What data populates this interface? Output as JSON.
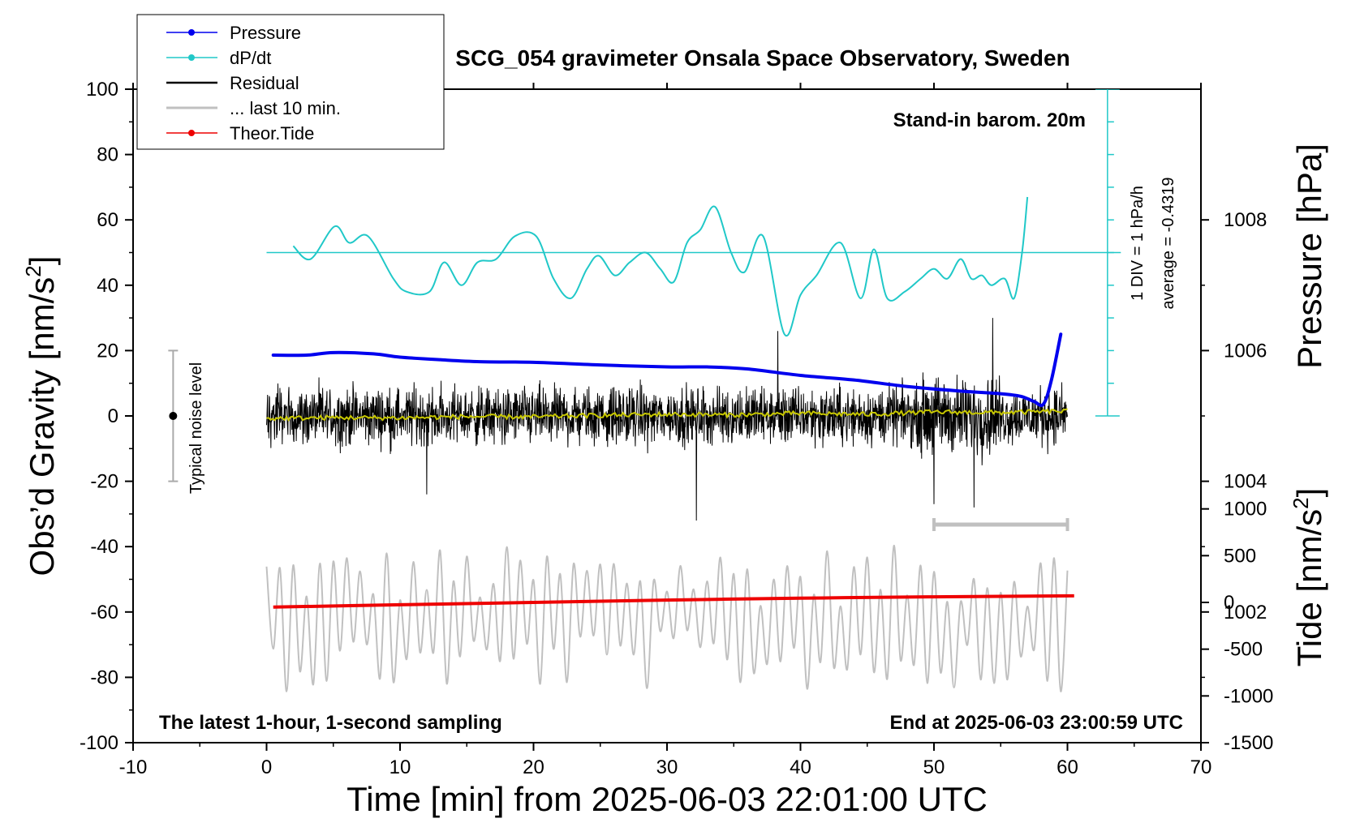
{
  "chart_data": {
    "type": "line",
    "title": "SCG_054 gravimeter Onsala Space Observatory, Sweden",
    "xlabel": "Time [min] from 2025-06-03 22:01:00 UTC",
    "ylabel_left_main": "Obs’d Gravity [nm/s",
    "ylabel_left_sup": "2",
    "ylabel_left_end": "]",
    "ylabel_right_pressure": "Pressure [hPa]",
    "ylabel_right_tide_main": "Tide [nm/s",
    "ylabel_right_tide_sup": "2",
    "ylabel_right_tide_end": "]",
    "xlim": [
      -10,
      70
    ],
    "ylim": [
      -100,
      100
    ],
    "pressure_lim": [
      1000,
      1010
    ],
    "tide_lim": [
      -1500,
      1500
    ],
    "x_ticks": [
      "-10",
      "0",
      "10",
      "20",
      "30",
      "40",
      "50",
      "60",
      "70"
    ],
    "y_ticks": [
      "100",
      "80",
      "60",
      "40",
      "20",
      "0",
      "-20",
      "-40",
      "-60",
      "-80",
      "-100"
    ],
    "pressure_ticks": [
      "1008",
      "1006",
      "1004",
      "1002"
    ],
    "tide_ticks": [
      "1000",
      "500",
      "0",
      "-500",
      "-1000",
      "-1500"
    ],
    "legend_placement": "top-left",
    "legend": {
      "pressure": "Pressure",
      "dpdt": "dP/dt",
      "residual": "Residual",
      "last10": "... last 10 min.",
      "tide": "Theor.Tide"
    },
    "annotations": {
      "barom": "Stand-in barom. 20m",
      "div": "1 DIV = 1 hPa/h",
      "average": "average = -0.4319",
      "noise": "Typical noise level",
      "latest": "The latest 1-hour, 1-second sampling",
      "end": "End at 2025-06-03 23:00:59 UTC"
    },
    "noise_bar": {
      "x": -7,
      "y_center": 0,
      "half_range": 20
    },
    "last10_bar": {
      "x_start": 50,
      "x_end": 60
    },
    "dpdt_scale": {
      "x": 63,
      "zero_y": 50,
      "y_min": 0,
      "y_max": 100,
      "tick_step": 10
    },
    "colors": {
      "pressure": "#0000ee",
      "dpdt": "#20c8c8",
      "residual": "#000000",
      "residual_smooth": "#c8c800",
      "last10": "#c0c0c0",
      "tide": "#ee0000"
    },
    "series": [
      {
        "name": "Pressure",
        "x": [
          0.5,
          3,
          5,
          8,
          10,
          13,
          16,
          20,
          25,
          30,
          33,
          36,
          40,
          44,
          48,
          52,
          55,
          56.5,
          57.5,
          58.2,
          58.8,
          59.5
        ],
        "values": [
          1005.93,
          1005.93,
          1005.97,
          1005.95,
          1005.9,
          1005.86,
          1005.83,
          1005.82,
          1005.78,
          1005.75,
          1005.75,
          1005.72,
          1005.62,
          1005.55,
          1005.45,
          1005.38,
          1005.34,
          1005.3,
          1005.22,
          1005.18,
          1005.55,
          1006.25
        ]
      },
      {
        "name": "dP/dt",
        "x": [
          2,
          3.3,
          5.1,
          6.2,
          7.6,
          9.5,
          10.5,
          12.2,
          13.3,
          14.6,
          15.8,
          17.2,
          18.6,
          20.2,
          21.5,
          22.8,
          24,
          24.9,
          26.1,
          27.2,
          28.4,
          29.5,
          30.5,
          31.5,
          32.5,
          33.6,
          34.8,
          35.8,
          37.2,
          38.8,
          40,
          41.2,
          43,
          44.5,
          45.5,
          46.5,
          47.8,
          49,
          50,
          51,
          52,
          52.8,
          53.6,
          54.3,
          55.3,
          56,
          56.6,
          57
        ],
        "values": [
          52,
          48,
          58,
          53,
          55,
          42,
          38,
          38,
          47,
          40,
          47,
          48,
          55,
          55,
          42,
          36,
          45,
          49,
          43,
          47,
          50,
          45,
          41,
          53,
          57,
          64,
          50,
          44,
          55,
          25,
          37,
          43,
          53,
          36,
          51,
          36,
          38,
          42,
          45,
          42,
          48,
          42,
          43,
          40,
          42,
          36,
          50,
          67
        ]
      },
      {
        "name": "Residual",
        "x_range": [
          0,
          60
        ],
        "sample_step_min": 0.025,
        "typical_amplitude": 8,
        "peak_points": [
          {
            "x": 12,
            "y": -24
          },
          {
            "x": 32.2,
            "y": -32
          },
          {
            "x": 38.3,
            "y": 26
          },
          {
            "x": 50,
            "y": -27
          },
          {
            "x": 53,
            "y": -28
          },
          {
            "x": 54.4,
            "y": 30
          }
        ]
      },
      {
        "name": "Residual (smoothed)",
        "x": [
          0,
          5,
          10,
          15,
          20,
          25,
          30,
          35,
          40,
          45,
          50,
          55,
          60
        ],
        "values": [
          -0.8,
          -0.5,
          -0.6,
          -0.2,
          -0.3,
          0.2,
          0.5,
          0.3,
          0.8,
          0.5,
          1.2,
          1.0,
          1.5
        ]
      },
      {
        "name": "Theor.Tide",
        "x": [
          0.5,
          10,
          20,
          30,
          40,
          50,
          60.5
        ],
        "values": [
          -50,
          -25,
          0,
          25,
          45,
          60,
          70
        ]
      },
      {
        "name": "... last 10 min.",
        "x_range": [
          0,
          60
        ],
        "sample_step_min": 0.5,
        "center_y": -62,
        "typical_amplitude": 14
      }
    ]
  }
}
